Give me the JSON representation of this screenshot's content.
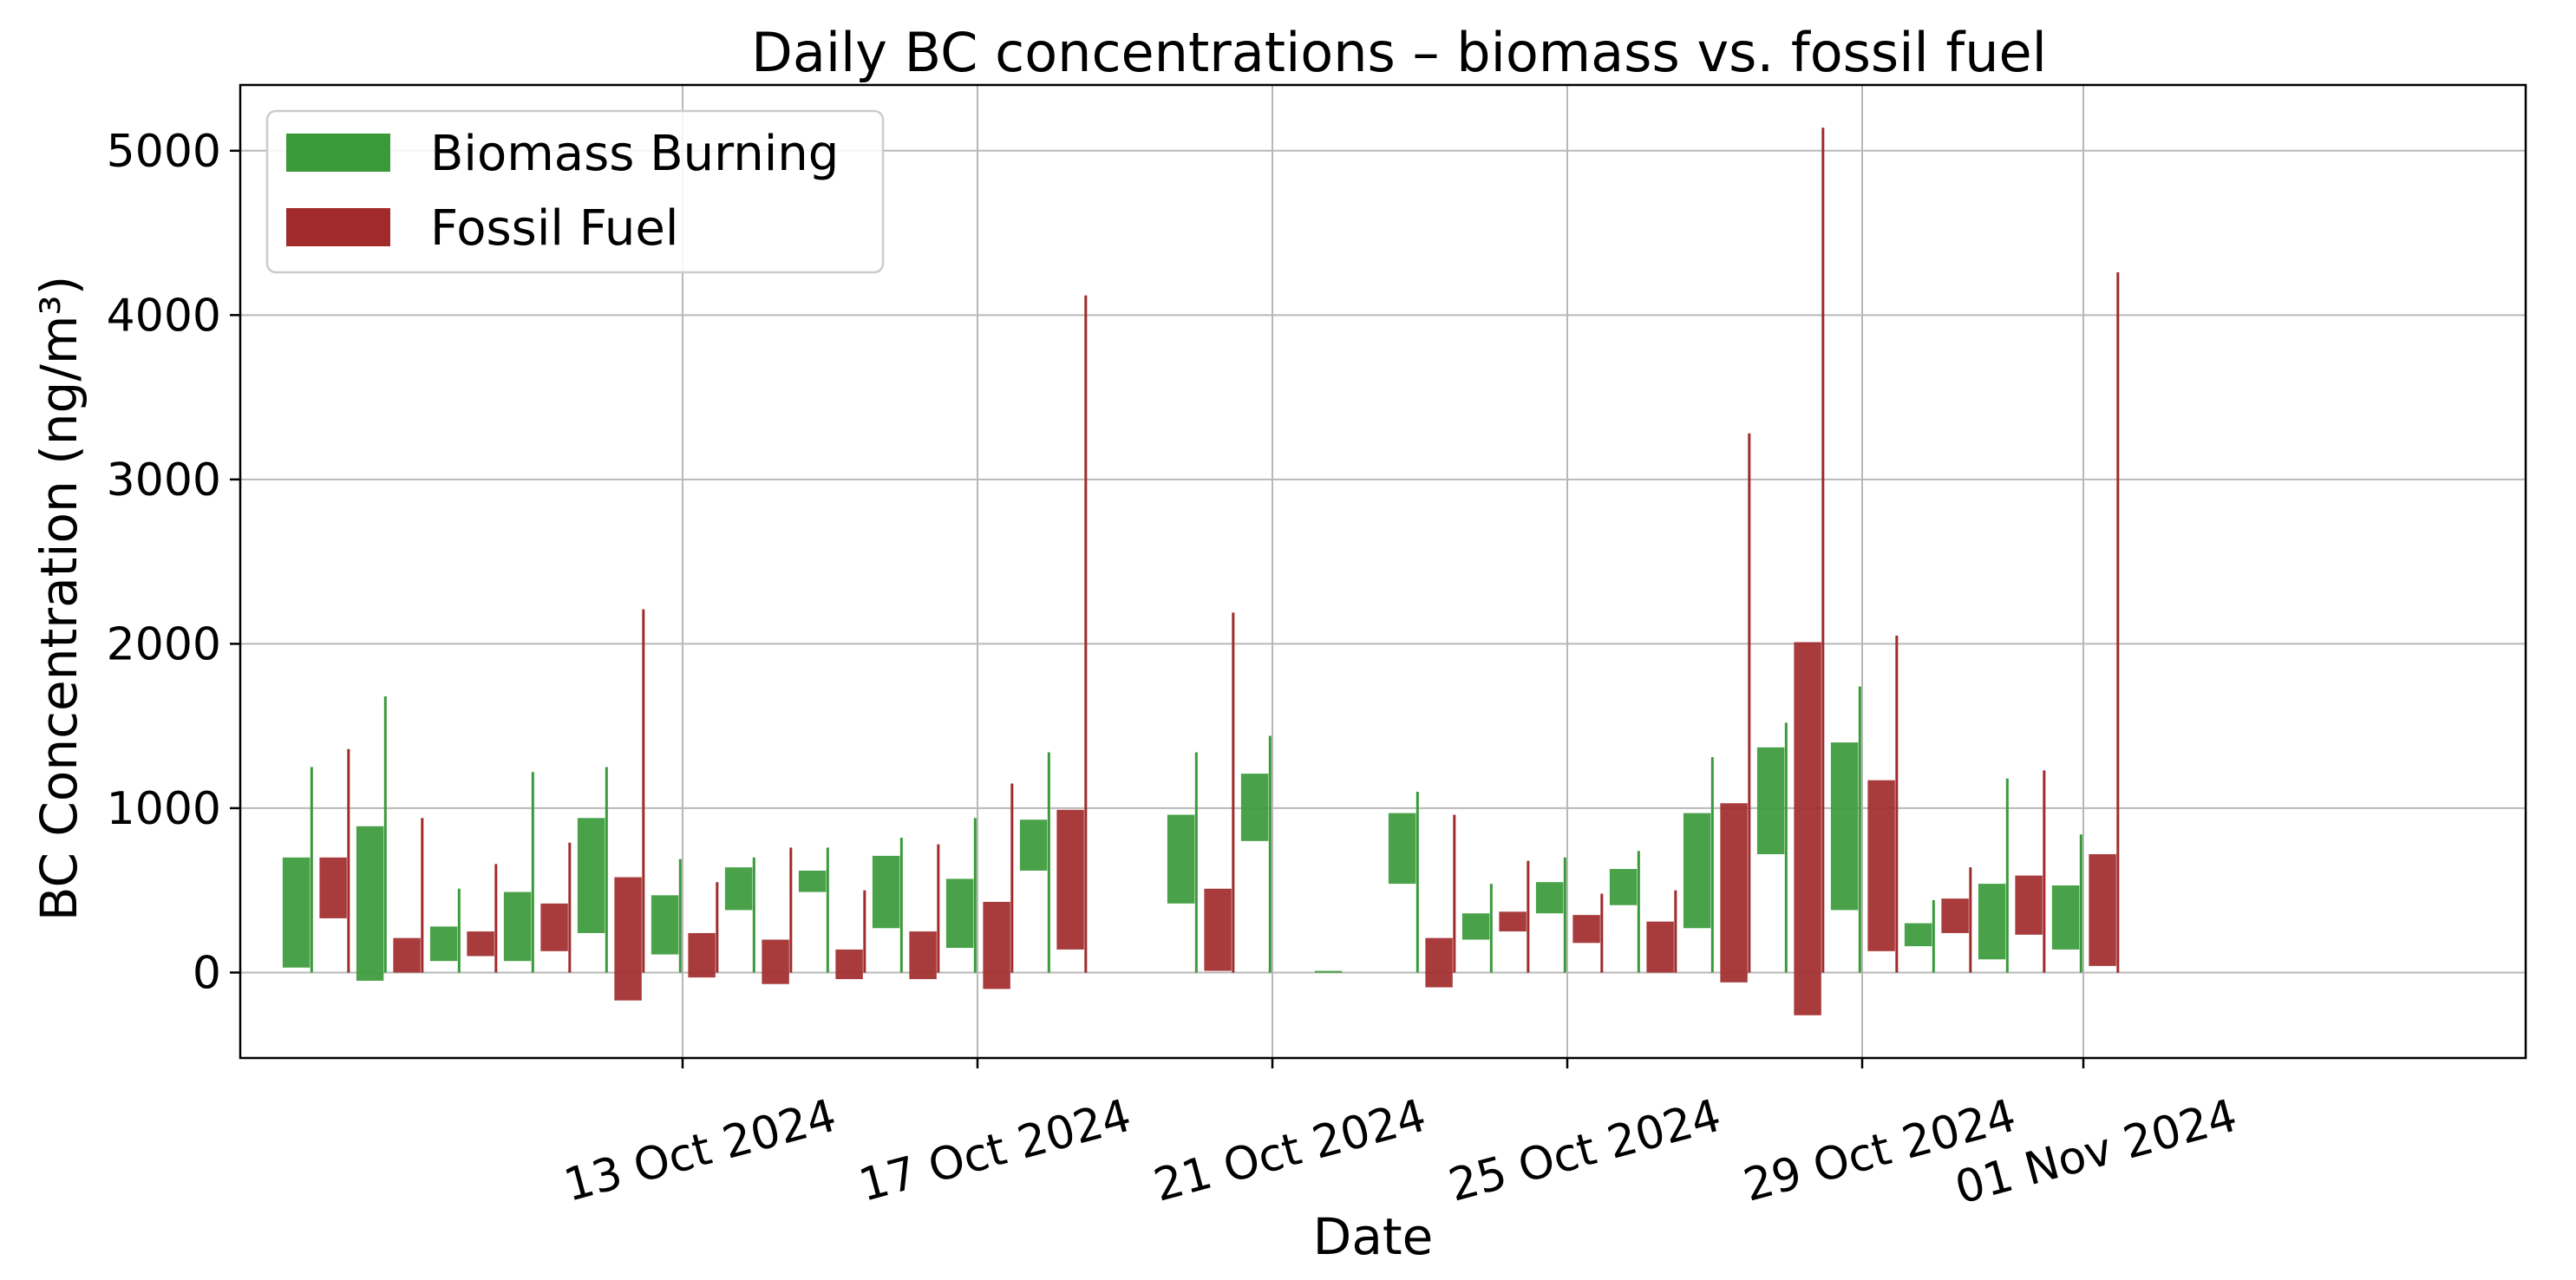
{
  "chart_data": {
    "type": "bar",
    "title": "Daily BC concentrations – biomass vs. fossil fuel",
    "xlabel": "Date",
    "ylabel": "BC Concentration (ng/m³)",
    "ylim": [
      -520,
      5400
    ],
    "yticks": [
      0,
      1000,
      2000,
      3000,
      4000,
      5000
    ],
    "xlim": [
      "2024-10-07",
      "2024-11-07"
    ],
    "xticks": [
      {
        "date": "2024-10-13",
        "label": "13 Oct 2024"
      },
      {
        "date": "2024-10-17",
        "label": "17 Oct 2024"
      },
      {
        "date": "2024-10-21",
        "label": "21 Oct 2024"
      },
      {
        "date": "2024-10-25",
        "label": "25 Oct 2024"
      },
      {
        "date": "2024-10-29",
        "label": "29 Oct 2024"
      },
      {
        "date": "2024-11-01",
        "label": "01 Nov 2024"
      }
    ],
    "grid": true,
    "legend_position": "top-left",
    "series": [
      {
        "name": "Biomass Burning",
        "color": "#3a9a3a",
        "points": [
          {
            "date": "2024-10-08",
            "low": 30,
            "high": 700,
            "whisker": 1250
          },
          {
            "date": "2024-10-09",
            "low": -50,
            "high": 890,
            "whisker": 1680
          },
          {
            "date": "2024-10-10",
            "low": 70,
            "high": 280,
            "whisker": 510
          },
          {
            "date": "2024-10-11",
            "low": 70,
            "high": 490,
            "whisker": 1220
          },
          {
            "date": "2024-10-12",
            "low": 240,
            "high": 940,
            "whisker": 1250
          },
          {
            "date": "2024-10-13",
            "low": 110,
            "high": 470,
            "whisker": 690
          },
          {
            "date": "2024-10-14",
            "low": 380,
            "high": 640,
            "whisker": 700
          },
          {
            "date": "2024-10-15",
            "low": 490,
            "high": 620,
            "whisker": 760
          },
          {
            "date": "2024-10-16",
            "low": 270,
            "high": 710,
            "whisker": 820
          },
          {
            "date": "2024-10-17",
            "low": 150,
            "high": 570,
            "whisker": 940
          },
          {
            "date": "2024-10-18",
            "low": 620,
            "high": 930,
            "whisker": 1340
          },
          {
            "date": "2024-10-20",
            "low": 420,
            "high": 960,
            "whisker": 1340
          },
          {
            "date": "2024-10-21",
            "low": 800,
            "high": 1210,
            "whisker": 1440
          },
          {
            "date": "2024-10-22",
            "low": 0,
            "high": 10,
            "whisker": 0
          },
          {
            "date": "2024-10-23",
            "low": 540,
            "high": 970,
            "whisker": 1100
          },
          {
            "date": "2024-10-24",
            "low": 200,
            "high": 360,
            "whisker": 540
          },
          {
            "date": "2024-10-25",
            "low": 360,
            "high": 550,
            "whisker": 700
          },
          {
            "date": "2024-10-26",
            "low": 410,
            "high": 630,
            "whisker": 740
          },
          {
            "date": "2024-10-27",
            "low": 270,
            "high": 970,
            "whisker": 1310
          },
          {
            "date": "2024-10-28",
            "low": 720,
            "high": 1370,
            "whisker": 1520
          },
          {
            "date": "2024-10-29",
            "low": 380,
            "high": 1400,
            "whisker": 1740
          },
          {
            "date": "2024-10-30",
            "low": 160,
            "high": 300,
            "whisker": 440
          },
          {
            "date": "2024-10-31",
            "low": 80,
            "high": 540,
            "whisker": 1180
          },
          {
            "date": "2024-11-01",
            "low": 140,
            "high": 530,
            "whisker": 840
          }
        ]
      },
      {
        "name": "Fossil Fuel",
        "color": "#a12b2b",
        "points": [
          {
            "date": "2024-10-08",
            "low": 330,
            "high": 700,
            "whisker": 1360
          },
          {
            "date": "2024-10-09",
            "low": 0,
            "high": 210,
            "whisker": 940
          },
          {
            "date": "2024-10-10",
            "low": 100,
            "high": 250,
            "whisker": 660
          },
          {
            "date": "2024-10-11",
            "low": 130,
            "high": 420,
            "whisker": 790
          },
          {
            "date": "2024-10-12",
            "low": -170,
            "high": 580,
            "whisker": 2210
          },
          {
            "date": "2024-10-13",
            "low": -30,
            "high": 240,
            "whisker": 550
          },
          {
            "date": "2024-10-14",
            "low": -70,
            "high": 200,
            "whisker": 760
          },
          {
            "date": "2024-10-15",
            "low": -40,
            "high": 140,
            "whisker": 500
          },
          {
            "date": "2024-10-16",
            "low": -40,
            "high": 250,
            "whisker": 780
          },
          {
            "date": "2024-10-17",
            "low": -100,
            "high": 430,
            "whisker": 1150
          },
          {
            "date": "2024-10-18",
            "low": 140,
            "high": 990,
            "whisker": 4120
          },
          {
            "date": "2024-10-20",
            "low": 10,
            "high": 510,
            "whisker": 2190
          },
          {
            "date": "2024-10-23",
            "low": -90,
            "high": 210,
            "whisker": 960
          },
          {
            "date": "2024-10-24",
            "low": 250,
            "high": 370,
            "whisker": 680
          },
          {
            "date": "2024-10-25",
            "low": 180,
            "high": 350,
            "whisker": 480
          },
          {
            "date": "2024-10-26",
            "low": 0,
            "high": 310,
            "whisker": 500
          },
          {
            "date": "2024-10-27",
            "low": -60,
            "high": 1030,
            "whisker": 3280
          },
          {
            "date": "2024-10-28",
            "low": -260,
            "high": 2010,
            "whisker": 5140
          },
          {
            "date": "2024-10-29",
            "low": 130,
            "high": 1170,
            "whisker": 2050
          },
          {
            "date": "2024-10-30",
            "low": 240,
            "high": 450,
            "whisker": 640
          },
          {
            "date": "2024-10-31",
            "low": 230,
            "high": 590,
            "whisker": 1230
          },
          {
            "date": "2024-11-01",
            "low": 40,
            "high": 720,
            "whisker": 4260
          }
        ]
      }
    ]
  }
}
